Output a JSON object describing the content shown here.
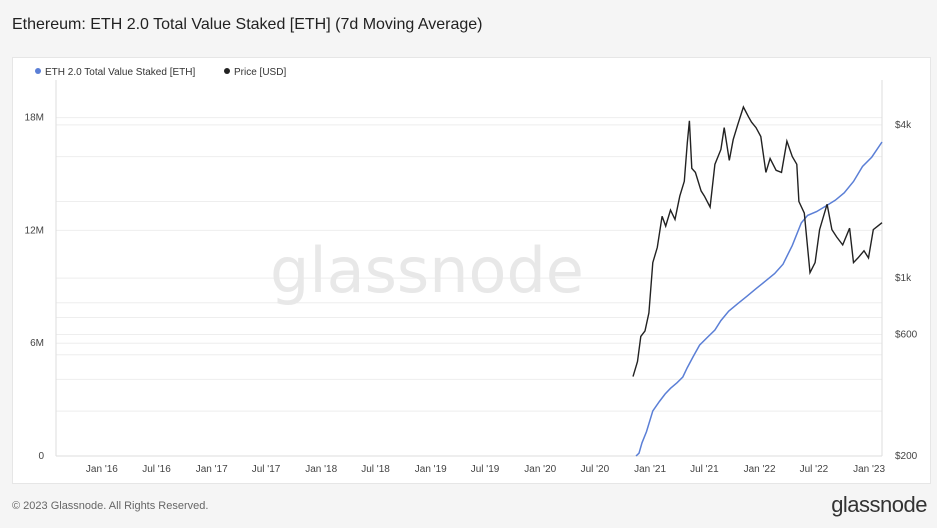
{
  "page": {
    "title": "Ethereum: ETH 2.0 Total Value Staked [ETH] (7d Moving Average)",
    "copyright": "© 2023 Glassnode. All Rights Reserved.",
    "logo": "glassnode",
    "watermark": "glassnode"
  },
  "colors": {
    "staked": "#5b7fd6",
    "price": "#222222",
    "grid": "#eeeeee"
  },
  "chart_data": {
    "type": "line",
    "title": "Ethereum: ETH 2.0 Total Value Staked [ETH] (7d Moving Average)",
    "legend": [
      "ETH 2.0 Total Value Staked [ETH]",
      "Price [USD]"
    ],
    "legend_placement": "top-left",
    "x_tick_labels": [
      "Jan '16",
      "Jul '16",
      "Jan '17",
      "Jul '17",
      "Jan '18",
      "Jul '18",
      "Jan '19",
      "Jul '19",
      "Jan '20",
      "Jul '20",
      "Jan '21",
      "Jul '21",
      "Jan '22",
      "Jul '22",
      "Jan '23"
    ],
    "x_range": [
      "2015-08-01",
      "2023-02-13"
    ],
    "y_left": {
      "ticks": [
        0,
        6000000,
        12000000,
        18000000
      ],
      "tick_labels": [
        "0",
        "6M",
        "12M",
        "18M"
      ],
      "ylim": [
        0,
        20000000
      ]
    },
    "y_right": {
      "scale": "log",
      "ticks": [
        200,
        600,
        1000,
        4000
      ],
      "tick_labels": [
        "$200",
        "$600",
        "$1k",
        "$4k"
      ],
      "ylim": [
        200,
        6000
      ]
    },
    "grid": true,
    "series": [
      {
        "name": "ETH 2.0 Total Value Staked [ETH]",
        "axis": "left",
        "points": [
          [
            "2020-11-15",
            0
          ],
          [
            "2020-11-25",
            150000
          ],
          [
            "2020-12-05",
            700000
          ],
          [
            "2020-12-20",
            1300000
          ],
          [
            "2021-01-10",
            2400000
          ],
          [
            "2021-02-01",
            2900000
          ],
          [
            "2021-02-20",
            3300000
          ],
          [
            "2021-03-10",
            3600000
          ],
          [
            "2021-04-01",
            3900000
          ],
          [
            "2021-04-20",
            4200000
          ],
          [
            "2021-05-05",
            4700000
          ],
          [
            "2021-05-25",
            5300000
          ],
          [
            "2021-06-15",
            5900000
          ],
          [
            "2021-07-10",
            6300000
          ],
          [
            "2021-08-05",
            6700000
          ],
          [
            "2021-08-25",
            7200000
          ],
          [
            "2021-09-20",
            7700000
          ],
          [
            "2021-10-20",
            8100000
          ],
          [
            "2021-11-20",
            8500000
          ],
          [
            "2021-12-20",
            8900000
          ],
          [
            "2022-01-20",
            9300000
          ],
          [
            "2022-02-20",
            9700000
          ],
          [
            "2022-03-20",
            10200000
          ],
          [
            "2022-04-20",
            11200000
          ],
          [
            "2022-05-20",
            12400000
          ],
          [
            "2022-06-10",
            12800000
          ],
          [
            "2022-07-10",
            13000000
          ],
          [
            "2022-08-10",
            13300000
          ],
          [
            "2022-09-10",
            13600000
          ],
          [
            "2022-10-10",
            14000000
          ],
          [
            "2022-11-10",
            14600000
          ],
          [
            "2022-12-10",
            15400000
          ],
          [
            "2023-01-10",
            15900000
          ],
          [
            "2023-02-13",
            16700000
          ]
        ]
      },
      {
        "name": "Price [USD]",
        "axis": "right",
        "points": [
          [
            "2020-11-05",
            410
          ],
          [
            "2020-11-20",
            470
          ],
          [
            "2020-12-01",
            590
          ],
          [
            "2020-12-15",
            620
          ],
          [
            "2020-12-28",
            730
          ],
          [
            "2021-01-10",
            1150
          ],
          [
            "2021-01-25",
            1320
          ],
          [
            "2021-02-10",
            1750
          ],
          [
            "2021-02-22",
            1600
          ],
          [
            "2021-03-10",
            1850
          ],
          [
            "2021-03-25",
            1700
          ],
          [
            "2021-04-10",
            2100
          ],
          [
            "2021-04-25",
            2400
          ],
          [
            "2021-05-05",
            3400
          ],
          [
            "2021-05-12",
            4150
          ],
          [
            "2021-05-20",
            2700
          ],
          [
            "2021-06-01",
            2600
          ],
          [
            "2021-06-20",
            2200
          ],
          [
            "2021-07-01",
            2100
          ],
          [
            "2021-07-20",
            1900
          ],
          [
            "2021-08-05",
            2800
          ],
          [
            "2021-08-25",
            3200
          ],
          [
            "2021-09-05",
            3900
          ],
          [
            "2021-09-22",
            2900
          ],
          [
            "2021-10-05",
            3500
          ],
          [
            "2021-10-20",
            4000
          ],
          [
            "2021-11-08",
            4700
          ],
          [
            "2021-11-25",
            4300
          ],
          [
            "2021-12-05",
            4100
          ],
          [
            "2021-12-20",
            3900
          ],
          [
            "2022-01-05",
            3600
          ],
          [
            "2022-01-22",
            2600
          ],
          [
            "2022-02-05",
            2950
          ],
          [
            "2022-02-25",
            2650
          ],
          [
            "2022-03-15",
            2600
          ],
          [
            "2022-04-02",
            3450
          ],
          [
            "2022-04-20",
            3000
          ],
          [
            "2022-05-05",
            2800
          ],
          [
            "2022-05-12",
            2000
          ],
          [
            "2022-05-30",
            1800
          ],
          [
            "2022-06-18",
            1050
          ],
          [
            "2022-07-05",
            1150
          ],
          [
            "2022-07-20",
            1550
          ],
          [
            "2022-08-14",
            1950
          ],
          [
            "2022-08-30",
            1550
          ],
          [
            "2022-09-15",
            1450
          ],
          [
            "2022-10-05",
            1350
          ],
          [
            "2022-10-28",
            1570
          ],
          [
            "2022-11-10",
            1150
          ],
          [
            "2022-11-25",
            1200
          ],
          [
            "2022-12-15",
            1280
          ],
          [
            "2022-12-30",
            1200
          ],
          [
            "2023-01-15",
            1550
          ],
          [
            "2023-01-30",
            1600
          ],
          [
            "2023-02-13",
            1650
          ]
        ]
      }
    ]
  }
}
